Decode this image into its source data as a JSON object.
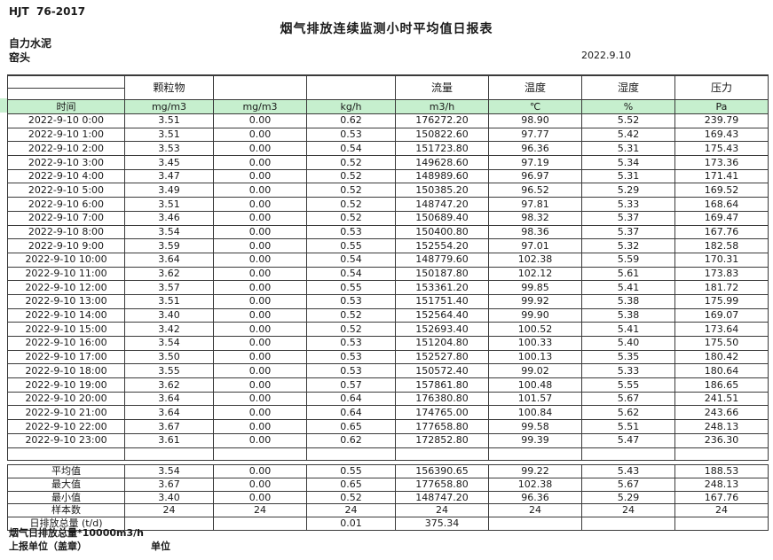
{
  "header": {
    "standard_code": "HJT  76-2017",
    "title": "烟气排放连续监测小时平均值日报表",
    "company": "自力水泥",
    "station": "窑头",
    "date": "2022.9.10"
  },
  "table": {
    "top_headers": [
      "",
      "颗粒物",
      "",
      "",
      "流量",
      "温度",
      "湿度",
      "压力"
    ],
    "unit_row": [
      "时间",
      "mg/m3",
      "mg/m3",
      "kg/h",
      "m3/h",
      "℃",
      "%",
      "Pa"
    ],
    "rows": [
      {
        "time": "2022-9-10 0:00",
        "values": [
          "3.51",
          "0.00",
          "0.62",
          "176272.20",
          "98.90",
          "5.52",
          "239.79"
        ]
      },
      {
        "time": "2022-9-10 1:00",
        "values": [
          "3.51",
          "0.00",
          "0.53",
          "150822.60",
          "97.77",
          "5.42",
          "169.43"
        ]
      },
      {
        "time": "2022-9-10 2:00",
        "values": [
          "3.53",
          "0.00",
          "0.54",
          "151723.80",
          "96.36",
          "5.31",
          "175.43"
        ]
      },
      {
        "time": "2022-9-10 3:00",
        "values": [
          "3.45",
          "0.00",
          "0.52",
          "149628.60",
          "97.19",
          "5.34",
          "173.36"
        ]
      },
      {
        "time": "2022-9-10 4:00",
        "values": [
          "3.47",
          "0.00",
          "0.52",
          "148989.60",
          "96.97",
          "5.31",
          "171.41"
        ]
      },
      {
        "time": "2022-9-10 5:00",
        "values": [
          "3.49",
          "0.00",
          "0.52",
          "150385.20",
          "96.52",
          "5.29",
          "169.52"
        ]
      },
      {
        "time": "2022-9-10 6:00",
        "values": [
          "3.51",
          "0.00",
          "0.52",
          "148747.20",
          "97.81",
          "5.33",
          "168.64"
        ]
      },
      {
        "time": "2022-9-10 7:00",
        "values": [
          "3.46",
          "0.00",
          "0.52",
          "150689.40",
          "98.32",
          "5.37",
          "169.47"
        ]
      },
      {
        "time": "2022-9-10 8:00",
        "values": [
          "3.54",
          "0.00",
          "0.53",
          "150400.80",
          "98.36",
          "5.37",
          "167.76"
        ]
      },
      {
        "time": "2022-9-10 9:00",
        "values": [
          "3.59",
          "0.00",
          "0.55",
          "152554.20",
          "97.01",
          "5.32",
          "182.58"
        ]
      },
      {
        "time": "2022-9-10 10:00",
        "values": [
          "3.64",
          "0.00",
          "0.54",
          "148779.60",
          "102.38",
          "5.59",
          "170.31"
        ]
      },
      {
        "time": "2022-9-10 11:00",
        "values": [
          "3.62",
          "0.00",
          "0.54",
          "150187.80",
          "102.12",
          "5.61",
          "173.83"
        ]
      },
      {
        "time": "2022-9-10 12:00",
        "values": [
          "3.57",
          "0.00",
          "0.55",
          "153361.20",
          "99.85",
          "5.41",
          "181.72"
        ]
      },
      {
        "time": "2022-9-10 13:00",
        "values": [
          "3.51",
          "0.00",
          "0.53",
          "151751.40",
          "99.92",
          "5.38",
          "175.99"
        ]
      },
      {
        "time": "2022-9-10 14:00",
        "values": [
          "3.40",
          "0.00",
          "0.52",
          "152564.40",
          "99.90",
          "5.38",
          "169.07"
        ]
      },
      {
        "time": "2022-9-10 15:00",
        "values": [
          "3.42",
          "0.00",
          "0.52",
          "152693.40",
          "100.52",
          "5.41",
          "173.64"
        ]
      },
      {
        "time": "2022-9-10 16:00",
        "values": [
          "3.54",
          "0.00",
          "0.53",
          "151204.80",
          "100.33",
          "5.40",
          "175.50"
        ]
      },
      {
        "time": "2022-9-10 17:00",
        "values": [
          "3.50",
          "0.00",
          "0.53",
          "152527.80",
          "100.13",
          "5.35",
          "180.42"
        ]
      },
      {
        "time": "2022-9-10 18:00",
        "values": [
          "3.55",
          "0.00",
          "0.53",
          "150572.40",
          "99.02",
          "5.33",
          "180.64"
        ]
      },
      {
        "time": "2022-9-10 19:00",
        "values": [
          "3.62",
          "0.00",
          "0.57",
          "157861.80",
          "100.48",
          "5.55",
          "186.65"
        ]
      },
      {
        "time": "2022-9-10 20:00",
        "values": [
          "3.64",
          "0.00",
          "0.64",
          "176380.80",
          "101.57",
          "5.67",
          "241.51"
        ]
      },
      {
        "time": "2022-9-10 21:00",
        "values": [
          "3.64",
          "0.00",
          "0.64",
          "174765.00",
          "100.84",
          "5.62",
          "243.66"
        ]
      },
      {
        "time": "2022-9-10 22:00",
        "values": [
          "3.67",
          "0.00",
          "0.65",
          "177658.80",
          "99.58",
          "5.51",
          "248.13"
        ]
      },
      {
        "time": "2022-9-10 23:00",
        "values": [
          "3.61",
          "0.00",
          "0.62",
          "172852.80",
          "99.39",
          "5.47",
          "236.30"
        ]
      }
    ],
    "stats": [
      {
        "label": "平均值",
        "values": [
          "3.54",
          "0.00",
          "0.55",
          "156390.65",
          "99.22",
          "5.43",
          "188.53"
        ]
      },
      {
        "label": "最大值",
        "values": [
          "3.67",
          "0.00",
          "0.65",
          "177658.80",
          "102.38",
          "5.67",
          "248.13"
        ]
      },
      {
        "label": "最小值",
        "values": [
          "3.40",
          "0.00",
          "0.52",
          "148747.20",
          "96.36",
          "5.29",
          "167.76"
        ]
      },
      {
        "label": "样本数",
        "values": [
          "24",
          "24",
          "24",
          "24",
          "24",
          "24",
          "24"
        ]
      },
      {
        "label": "日排放总量 (t/d)",
        "values": [
          "",
          "",
          "0.01",
          "375.34",
          "",
          "",
          ""
        ]
      }
    ]
  },
  "footer": {
    "note": "烟气日排放总量*10000m3/h",
    "report_unit_label": "上报单位（盖章）",
    "unit_label": "单位"
  },
  "colors": {
    "header_green": "#c6efce",
    "border": "#3a3a3a"
  }
}
